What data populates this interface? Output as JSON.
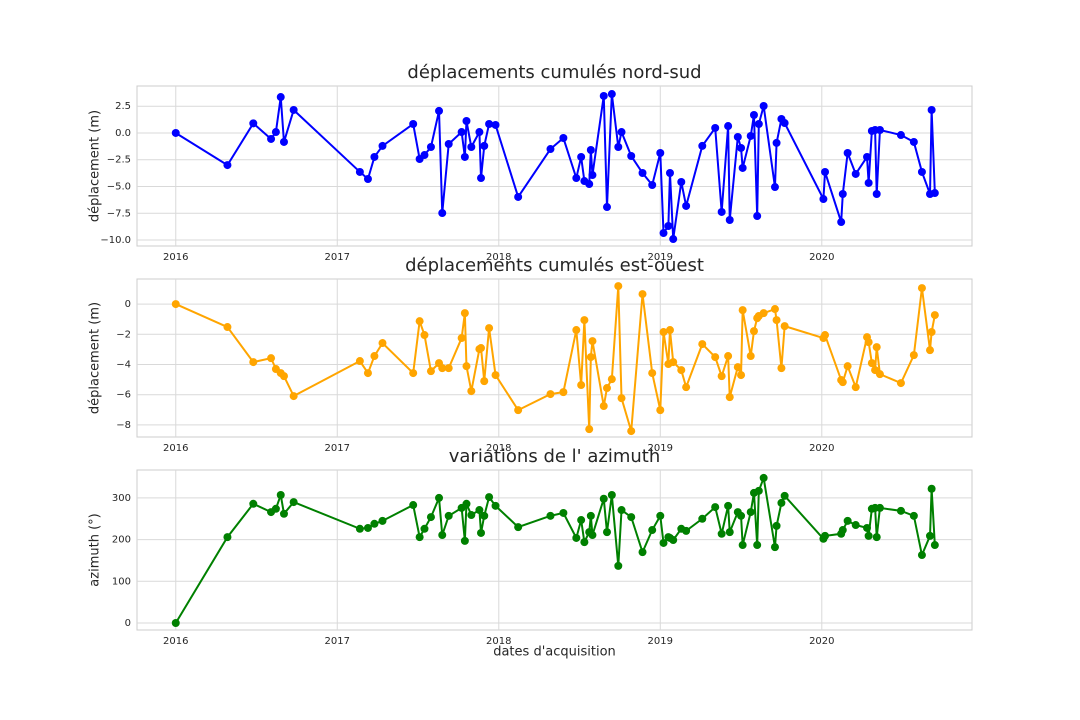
{
  "chart_data": [
    {
      "type": "line",
      "title": "déplacements cumulés nord-sud",
      "ylabel": "déplacement (m)",
      "color": "#0000ff",
      "grid": true,
      "xlim": [
        2015.76,
        2020.93
      ],
      "xticks": [
        2016,
        2017,
        2018,
        2019,
        2020
      ],
      "ylim": [
        -10.56,
        4.39
      ],
      "yticks": [
        {
          "value": 2.5,
          "label": "2.5"
        },
        {
          "value": 0,
          "label": "0.0"
        },
        {
          "value": -2.5,
          "label": "−2.5"
        },
        {
          "value": -5,
          "label": "−5.0"
        },
        {
          "value": -7.5,
          "label": "−7.5"
        },
        {
          "value": -10,
          "label": "−10.0"
        }
      ],
      "x": [
        2016.0,
        2016.32,
        2016.48,
        2016.59,
        2016.62,
        2016.65,
        2016.67,
        2016.73,
        2017.14,
        2017.19,
        2017.23,
        2017.28,
        2017.47,
        2017.51,
        2017.54,
        2017.58,
        2017.63,
        2017.65,
        2017.69,
        2017.77,
        2017.79,
        2017.8,
        2017.83,
        2017.88,
        2017.89,
        2017.91,
        2017.94,
        2017.98,
        2018.12,
        2018.32,
        2018.4,
        2018.48,
        2018.51,
        2018.53,
        2018.56,
        2018.57,
        2018.58,
        2018.65,
        2018.67,
        2018.7,
        2018.74,
        2018.76,
        2018.82,
        2018.89,
        2018.95,
        2019.0,
        2019.02,
        2019.05,
        2019.06,
        2019.08,
        2019.13,
        2019.16,
        2019.26,
        2019.34,
        2019.38,
        2019.42,
        2019.43,
        2019.48,
        2019.5,
        2019.51,
        2019.56,
        2019.58,
        2019.6,
        2019.61,
        2019.64,
        2019.71,
        2019.72,
        2019.75,
        2019.77,
        2020.01,
        2020.02,
        2020.12,
        2020.13,
        2020.16,
        2020.21,
        2020.28,
        2020.29,
        2020.31,
        2020.33,
        2020.34,
        2020.36,
        2020.49,
        2020.57,
        2020.62,
        2020.67,
        2020.68,
        2020.7
      ],
      "values": [
        0,
        -3.0,
        0.9,
        -0.56,
        0.09,
        3.36,
        -0.84,
        2.15,
        -3.64,
        -4.3,
        -2.24,
        -1.21,
        0.84,
        -2.43,
        -2.06,
        -1.31,
        2.06,
        -7.48,
        -1.03,
        0.09,
        -2.24,
        1.12,
        -1.31,
        0.09,
        -4.21,
        -1.21,
        0.84,
        0.75,
        -5.98,
        -1.5,
        -0.47,
        -4.21,
        -2.24,
        -4.49,
        -4.77,
        -1.59,
        -3.93,
        3.46,
        -6.92,
        3.64,
        -1.31,
        0.09,
        -2.15,
        -3.74,
        -4.86,
        -1.87,
        -9.35,
        -8.69,
        -3.74,
        -9.91,
        -4.58,
        -6.82,
        -1.21,
        0.47,
        -7.38,
        0.65,
        -8.13,
        -0.37,
        -1.4,
        -3.27,
        -0.28,
        1.68,
        -7.76,
        0.84,
        2.52,
        -5.05,
        -0.93,
        1.31,
        0.93,
        -6.17,
        -3.64,
        -8.32,
        -5.7,
        -1.87,
        -3.83,
        -2.24,
        -4.67,
        0.19,
        0.28,
        -5.7,
        0.28,
        -0.19,
        -0.84,
        -3.64,
        -5.7,
        2.15,
        -5.61
      ]
    },
    {
      "type": "line",
      "title": "déplacements cumulés est-ouest",
      "ylabel": "déplacement (m)",
      "color": "#ffa500",
      "grid": true,
      "xlim": [
        2015.76,
        2020.93
      ],
      "xticks": [
        2016,
        2017,
        2018,
        2019,
        2020
      ],
      "ylim": [
        -8.8,
        1.66
      ],
      "yticks": [
        0,
        {
          "value": -2,
          "label": "−2"
        },
        {
          "value": -4,
          "label": "−4"
        },
        {
          "value": -6,
          "label": "−6"
        },
        {
          "value": -8,
          "label": "−8"
        }
      ],
      "x": [
        2016.0,
        2016.32,
        2016.48,
        2016.59,
        2016.62,
        2016.65,
        2016.67,
        2016.73,
        2017.14,
        2017.19,
        2017.23,
        2017.28,
        2017.47,
        2017.51,
        2017.54,
        2017.58,
        2017.63,
        2017.65,
        2017.69,
        2017.77,
        2017.79,
        2017.8,
        2017.83,
        2017.88,
        2017.89,
        2017.91,
        2017.94,
        2017.98,
        2018.12,
        2018.32,
        2018.4,
        2018.48,
        2018.51,
        2018.53,
        2018.56,
        2018.57,
        2018.58,
        2018.65,
        2018.67,
        2018.7,
        2018.74,
        2018.76,
        2018.82,
        2018.89,
        2018.95,
        2019.0,
        2019.02,
        2019.05,
        2019.06,
        2019.08,
        2019.13,
        2019.16,
        2019.26,
        2019.34,
        2019.38,
        2019.42,
        2019.43,
        2019.48,
        2019.5,
        2019.51,
        2019.56,
        2019.58,
        2019.6,
        2019.61,
        2019.64,
        2019.71,
        2019.72,
        2019.75,
        2019.77,
        2020.01,
        2020.02,
        2020.12,
        2020.13,
        2020.16,
        2020.21,
        2020.28,
        2020.29,
        2020.31,
        2020.33,
        2020.34,
        2020.36,
        2020.49,
        2020.57,
        2020.62,
        2020.67,
        2020.68,
        2020.7
      ],
      "values": [
        0,
        -1.52,
        -3.84,
        -3.58,
        -4.3,
        -4.57,
        -4.77,
        -6.09,
        -3.77,
        -4.57,
        -3.44,
        -2.58,
        -4.57,
        -1.13,
        -2.05,
        -4.44,
        -3.91,
        -4.24,
        -4.24,
        -2.25,
        -0.6,
        -4.11,
        -5.76,
        -2.98,
        -2.91,
        -5.1,
        -1.59,
        -4.7,
        -7.02,
        -5.96,
        -5.83,
        -1.72,
        -5.36,
        -1.06,
        -8.28,
        -3.51,
        -2.45,
        -6.75,
        -5.56,
        -4.97,
        1.19,
        -6.23,
        -8.41,
        0.66,
        -4.57,
        -7.02,
        -1.85,
        -3.97,
        -1.72,
        -3.84,
        -4.37,
        -5.5,
        -2.65,
        -3.51,
        -4.77,
        -3.44,
        -6.16,
        -4.17,
        -4.7,
        -0.4,
        -3.44,
        -1.79,
        -0.93,
        -0.79,
        -0.6,
        -0.33,
        -1.06,
        -4.24,
        -1.46,
        -2.25,
        -2.05,
        -5.03,
        -5.17,
        -4.11,
        -5.5,
        -2.19,
        -2.52,
        -3.91,
        -4.37,
        -2.85,
        -4.64,
        -5.23,
        -3.38,
        1.06,
        -3.05,
        -1.85,
        -0.73
      ]
    },
    {
      "type": "line",
      "title": "variations de l' azimuth",
      "ylabel": "azimuth (°)",
      "xlabel": "dates d'acquisition",
      "color": "#008000",
      "grid": true,
      "xlim": [
        2015.76,
        2020.93
      ],
      "xticks": [
        2016,
        2017,
        2018,
        2019,
        2020
      ],
      "ylim": [
        -16.8,
        367
      ],
      "yticks": [
        0,
        100,
        200,
        300
      ],
      "x": [
        2016.0,
        2016.32,
        2016.48,
        2016.59,
        2016.62,
        2016.65,
        2016.67,
        2016.73,
        2017.14,
        2017.19,
        2017.23,
        2017.28,
        2017.47,
        2017.51,
        2017.54,
        2017.58,
        2017.63,
        2017.65,
        2017.69,
        2017.77,
        2017.79,
        2017.8,
        2017.83,
        2017.88,
        2017.89,
        2017.91,
        2017.94,
        2017.98,
        2018.12,
        2018.32,
        2018.4,
        2018.48,
        2018.51,
        2018.53,
        2018.56,
        2018.57,
        2018.58,
        2018.65,
        2018.67,
        2018.7,
        2018.74,
        2018.76,
        2018.82,
        2018.89,
        2018.95,
        2019.0,
        2019.02,
        2019.05,
        2019.06,
        2019.08,
        2019.13,
        2019.16,
        2019.26,
        2019.34,
        2019.38,
        2019.42,
        2019.43,
        2019.48,
        2019.5,
        2019.51,
        2019.56,
        2019.58,
        2019.6,
        2019.61,
        2019.64,
        2019.71,
        2019.72,
        2019.75,
        2019.77,
        2020.01,
        2020.02,
        2020.12,
        2020.13,
        2020.16,
        2020.21,
        2020.28,
        2020.29,
        2020.31,
        2020.33,
        2020.34,
        2020.36,
        2020.49,
        2020.57,
        2020.62,
        2020.67,
        2020.68,
        2020.7
      ],
      "values": [
        0,
        206,
        286,
        266,
        274,
        307,
        262,
        290,
        226,
        228,
        238,
        245,
        283,
        206,
        226,
        254,
        300,
        211,
        257,
        276,
        197,
        286,
        259,
        271,
        216,
        257,
        302,
        281,
        230,
        257,
        264,
        204,
        247,
        194,
        218,
        257,
        211,
        298,
        218,
        307,
        137,
        271,
        254,
        170,
        223,
        257,
        192,
        206,
        204,
        199,
        226,
        221,
        250,
        278,
        214,
        281,
        218,
        266,
        257,
        187,
        266,
        312,
        187,
        317,
        348,
        182,
        233,
        288,
        305,
        202,
        209,
        214,
        223,
        245,
        235,
        228,
        209,
        274,
        276,
        206,
        276,
        269,
        257,
        163,
        209,
        322,
        187
      ]
    }
  ]
}
